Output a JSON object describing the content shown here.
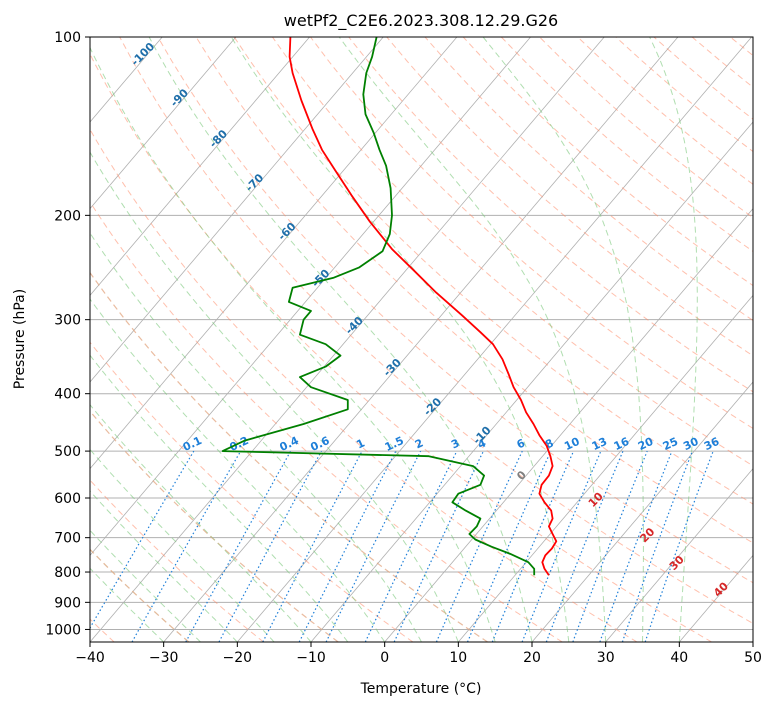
{
  "chart_data": {
    "type": "line",
    "title": "wetPf2_C2E6.2023.308.12.29.G26",
    "xlabel": "Temperature (°C)",
    "ylabel": "Pressure (hPa)",
    "xlim": [
      -40,
      50
    ],
    "ylim": [
      1050,
      100
    ],
    "y_scale": "log",
    "x_ticks": [
      -40,
      -30,
      -20,
      -10,
      0,
      10,
      20,
      30,
      40,
      50
    ],
    "x_tick_labels": [
      "−40",
      "−30",
      "−20",
      "−10",
      "0",
      "10",
      "20",
      "30",
      "40",
      "50"
    ],
    "y_ticks": [
      100,
      200,
      300,
      400,
      500,
      600,
      700,
      800,
      900,
      1000
    ],
    "y_tick_labels": [
      "100",
      "200",
      "300",
      "400",
      "500",
      "600",
      "700",
      "800",
      "900",
      "1000"
    ],
    "colors": {
      "temperature": "#ff0000",
      "dewpoint": "#008000",
      "isotherm": "#b0b0b0",
      "dry_adiabat": "#ff8c6a",
      "moist_adiabat": "#7cc87c",
      "mixing_ratio": "#1e7fd8",
      "isotherm_label": "#1f6faa",
      "tan_curve": "#d2b48c",
      "theta_label": "#d62728"
    },
    "series": [
      {
        "name": "Temperature",
        "points": [
          [
            22.3,
            810
          ],
          [
            21.7,
            790
          ],
          [
            21.4,
            770
          ],
          [
            21.8,
            750
          ],
          [
            22.7,
            730
          ],
          [
            23.3,
            710
          ],
          [
            22.8,
            690
          ],
          [
            22.3,
            670
          ],
          [
            22.8,
            650
          ],
          [
            22.6,
            630
          ],
          [
            21.7,
            610
          ],
          [
            21.0,
            590
          ],
          [
            21.3,
            570
          ],
          [
            22.3,
            550
          ],
          [
            22.8,
            530
          ],
          [
            22.5,
            510
          ],
          [
            22.0,
            490
          ],
          [
            21.0,
            470
          ],
          [
            20.2,
            450
          ],
          [
            19.2,
            430
          ],
          [
            18.5,
            410
          ],
          [
            17.5,
            390
          ],
          [
            16.8,
            370
          ],
          [
            16.0,
            350
          ],
          [
            14.7,
            330
          ],
          [
            13.0,
            315
          ],
          [
            10.5,
            295
          ],
          [
            7.0,
            270
          ],
          [
            4.0,
            248
          ],
          [
            1.0,
            228
          ],
          [
            -2.0,
            205
          ],
          [
            -4.5,
            185
          ],
          [
            -6.7,
            168
          ],
          [
            -8.5,
            155
          ],
          [
            -9.8,
            143
          ],
          [
            -11.3,
            128
          ],
          [
            -12.5,
            115
          ],
          [
            -12.9,
            108
          ],
          [
            -12.8,
            100
          ]
        ]
      },
      {
        "name": "Dewpoint",
        "points": [
          [
            20.3,
            810
          ],
          [
            20.3,
            790
          ],
          [
            19.5,
            770
          ],
          [
            17.0,
            745
          ],
          [
            14.5,
            725
          ],
          [
            12.3,
            705
          ],
          [
            11.5,
            690
          ],
          [
            12.5,
            670
          ],
          [
            13.0,
            650
          ],
          [
            11.0,
            630
          ],
          [
            9.2,
            610
          ],
          [
            10.0,
            590
          ],
          [
            13.0,
            570
          ],
          [
            13.5,
            550
          ],
          [
            12.0,
            530
          ],
          [
            6.0,
            510
          ],
          [
            -22.0,
            500
          ],
          [
            -19.0,
            480
          ],
          [
            -11.0,
            450
          ],
          [
            -5.0,
            425
          ],
          [
            -5.0,
            410
          ],
          [
            -10.0,
            390
          ],
          [
            -11.5,
            375
          ],
          [
            -8.0,
            360
          ],
          [
            -6.0,
            345
          ],
          [
            -8.0,
            330
          ],
          [
            -11.5,
            318
          ],
          [
            -11.0,
            300
          ],
          [
            -10.0,
            290
          ],
          [
            -13.0,
            280
          ],
          [
            -12.5,
            265
          ],
          [
            -7.0,
            255
          ],
          [
            -3.5,
            245
          ],
          [
            -0.3,
            230
          ],
          [
            0.7,
            215
          ],
          [
            1.0,
            200
          ],
          [
            0.8,
            180
          ],
          [
            0.2,
            165
          ],
          [
            -0.7,
            155
          ],
          [
            -1.5,
            145
          ],
          [
            -2.6,
            135
          ],
          [
            -2.9,
            125
          ],
          [
            -2.5,
            115
          ],
          [
            -1.7,
            108
          ],
          [
            -1.1,
            100
          ]
        ]
      }
    ],
    "isotherm_labels": [
      "-100",
      "-90",
      "-80",
      "-70",
      "-60",
      "-50",
      "-40",
      "-30",
      "-20",
      "-10",
      "0"
    ],
    "mixing_ratio_labels": [
      "0.1",
      "0.2",
      "0.4",
      "0.6",
      "1",
      "1.5",
      "2",
      "3",
      "4",
      "6",
      "8",
      "10",
      "13",
      "16",
      "20",
      "25",
      "30",
      "36"
    ],
    "theta_labels": [
      "10",
      "20",
      "30",
      "40"
    ]
  }
}
